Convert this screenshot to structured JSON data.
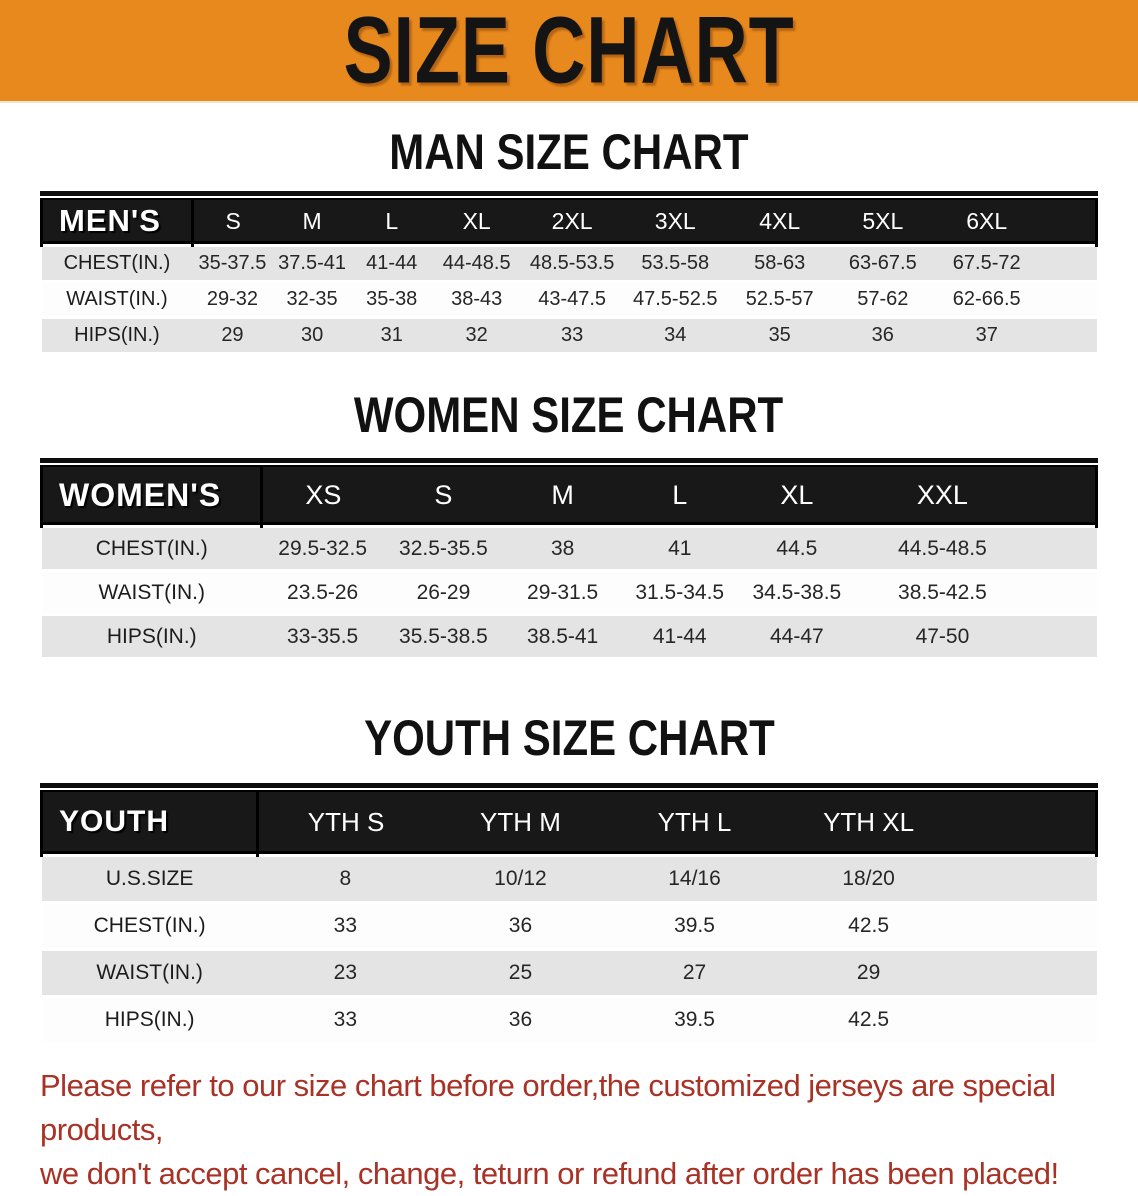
{
  "banner": {
    "title": "SIZE CHART",
    "bg_color": "#e8891e"
  },
  "colors": {
    "header_bg": "#181818",
    "row_alt_bg": "#e4e4e4",
    "disclaimer_red": "#a93226"
  },
  "sections": [
    {
      "heading": "MAN SIZE CHART",
      "group_label": "MEN'S",
      "size_columns": [
        "S",
        "M",
        "L",
        "XL",
        "2XL",
        "3XL",
        "4XL",
        "5XL",
        "6XL"
      ],
      "rows": [
        {
          "label": "CHEST(IN.)",
          "values": [
            "35-37.5",
            "37.5-41",
            "41-44",
            "44-48.5",
            "48.5-53.5",
            "53.5-58",
            "58-63",
            "63-67.5",
            "67.5-72"
          ]
        },
        {
          "label": "WAIST(IN.)",
          "values": [
            "29-32",
            "32-35",
            "35-38",
            "38-43",
            "43-47.5",
            "47.5-52.5",
            "52.5-57",
            "57-62",
            "62-66.5"
          ]
        },
        {
          "label": "HIPS(IN.)",
          "values": [
            "29",
            "30",
            "31",
            "32",
            "33",
            "34",
            "35",
            "36",
            "37"
          ]
        }
      ]
    },
    {
      "heading": "WOMEN SIZE CHART",
      "group_label": "WOMEN'S",
      "size_columns": [
        "XS",
        "S",
        "M",
        "L",
        "XL",
        "XXL"
      ],
      "rows": [
        {
          "label": "CHEST(IN.)",
          "values": [
            "29.5-32.5",
            "32.5-35.5",
            "38",
            "41",
            "44.5",
            "44.5-48.5"
          ]
        },
        {
          "label": "WAIST(IN.)",
          "values": [
            "23.5-26",
            "26-29",
            "29-31.5",
            "31.5-34.5",
            "34.5-38.5",
            "38.5-42.5"
          ]
        },
        {
          "label": "HIPS(IN.)",
          "values": [
            "33-35.5",
            "35.5-38.5",
            "38.5-41",
            "41-44",
            "44-47",
            "47-50"
          ]
        }
      ]
    },
    {
      "heading": "YOUTH SIZE CHART",
      "group_label": "YOUTH",
      "size_columns": [
        "YTH S",
        "YTH M",
        "YTH L",
        "YTH XL"
      ],
      "rows": [
        {
          "label": "U.S.SIZE",
          "values": [
            "8",
            "10/12",
            "14/16",
            "18/20"
          ]
        },
        {
          "label": "CHEST(IN.)",
          "values": [
            "33",
            "36",
            "39.5",
            "42.5"
          ]
        },
        {
          "label": "WAIST(IN.)",
          "values": [
            "23",
            "25",
            "27",
            "29"
          ]
        },
        {
          "label": "HIPS(IN.)",
          "values": [
            "33",
            "36",
            "39.5",
            "42.5"
          ]
        }
      ]
    }
  ],
  "disclaimer": {
    "line1": "Please refer to our size chart before order,the customized jerseys are special products,",
    "line2": "we don't accept cancel, change, teturn or refund after order has been placed!"
  }
}
